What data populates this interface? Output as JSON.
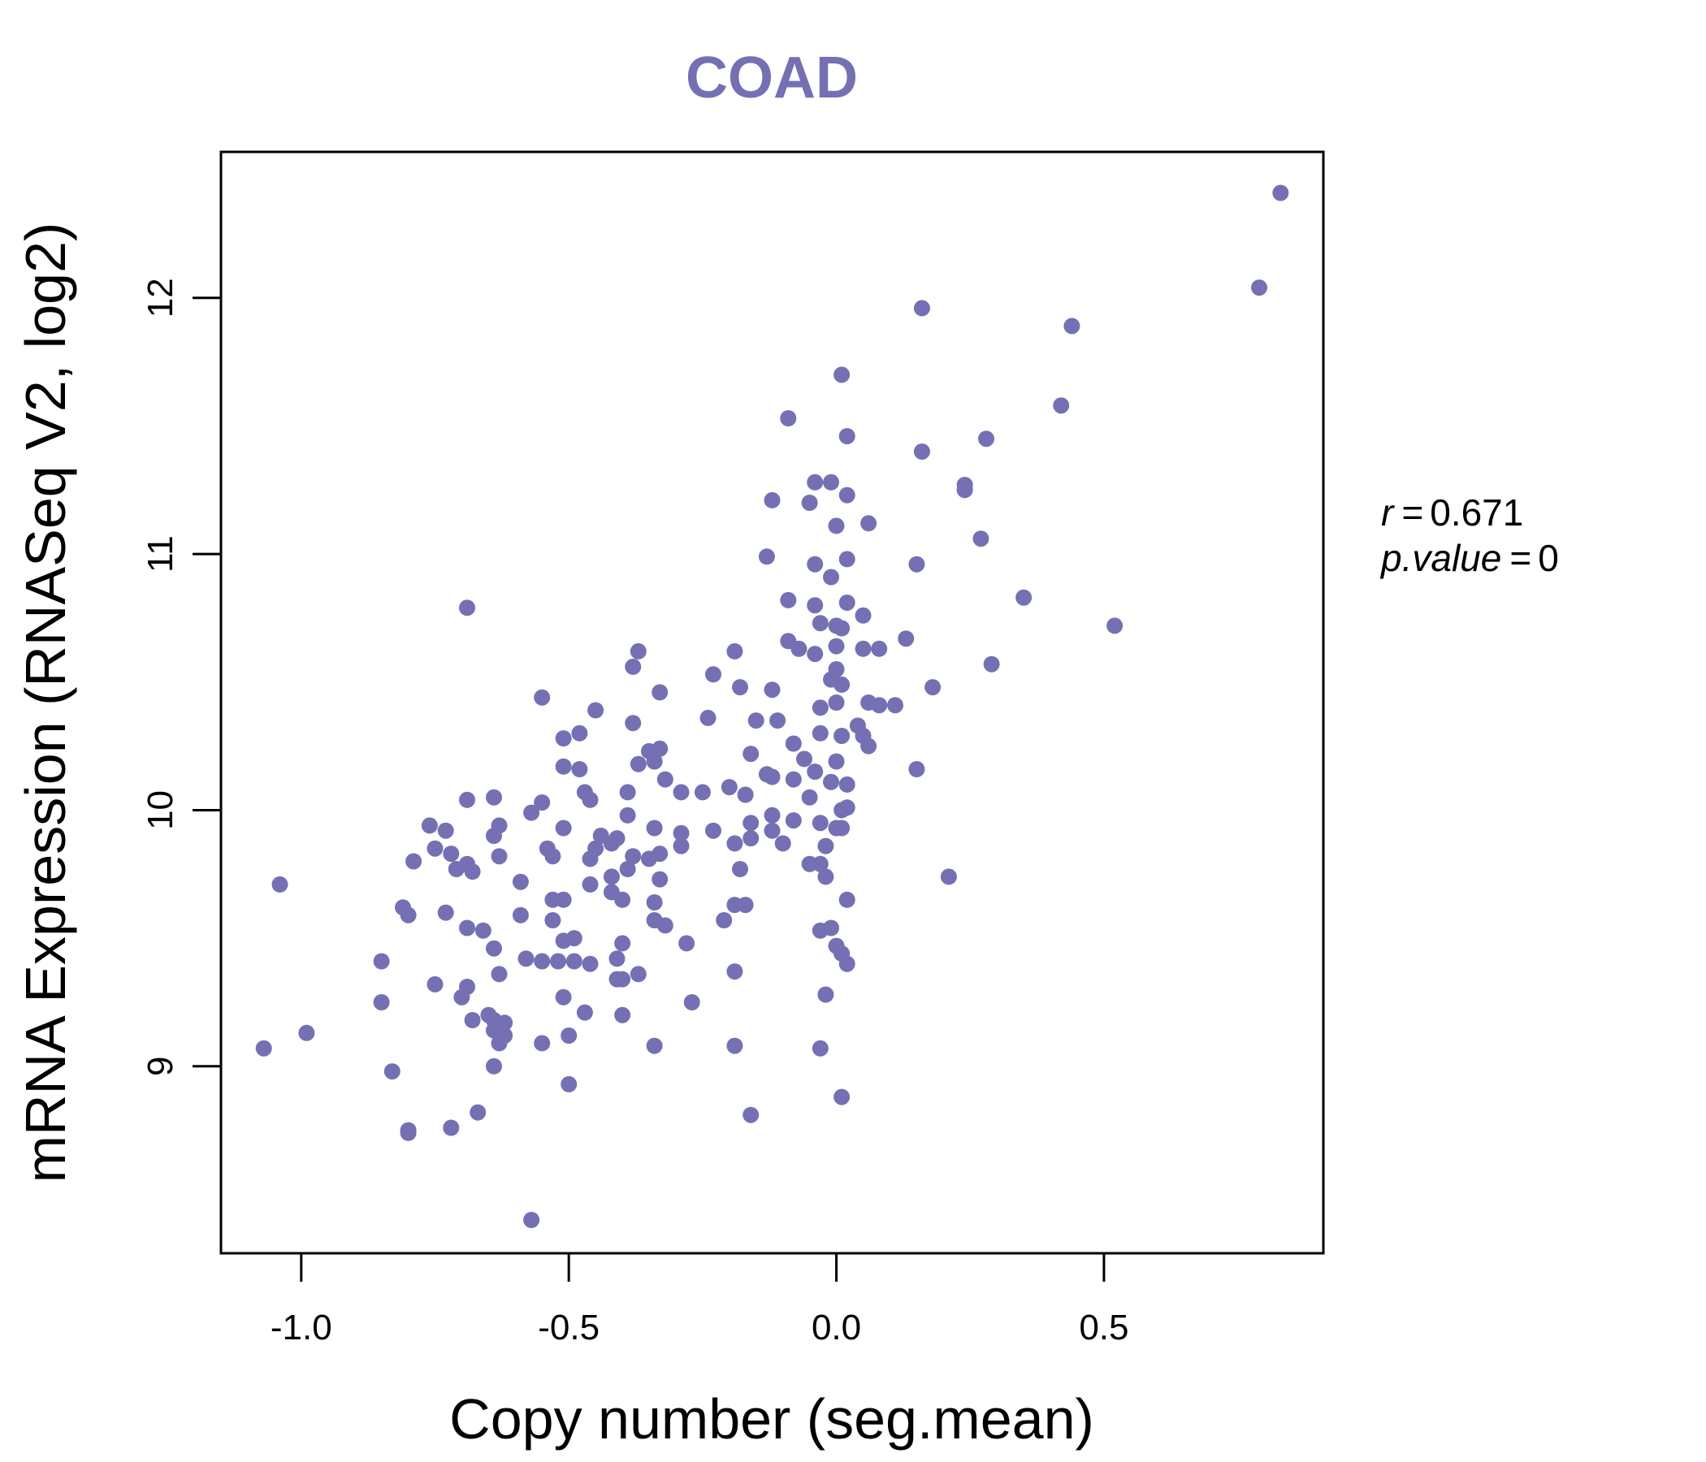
{
  "chart_data": {
    "type": "scatter",
    "title": "COAD",
    "xlabel": "Copy number (seg.mean)",
    "ylabel": "mRNA Expression (RNASeq V2, log2)",
    "xlim": [
      -1.15,
      0.91
    ],
    "ylim": [
      8.27,
      12.57
    ],
    "x_ticks": [
      -1.0,
      -0.5,
      0.0,
      0.5
    ],
    "x_tick_labels": [
      "-1.0",
      "-0.5",
      "0.0",
      "0.5"
    ],
    "y_ticks": [
      9,
      10,
      11,
      12
    ],
    "y_tick_labels": [
      "9",
      "10",
      "11",
      "12"
    ],
    "color": "#7570b3",
    "grid": false,
    "annotations": {
      "r_label": "r",
      "r_value": "0.671",
      "p_label": "p.value",
      "p_value": "0"
    },
    "points": [
      [
        0.83,
        12.41
      ],
      [
        0.79,
        12.04
      ],
      [
        0.16,
        11.96
      ],
      [
        0.44,
        11.89
      ],
      [
        0.01,
        11.7
      ],
      [
        0.42,
        11.58
      ],
      [
        -0.09,
        11.53
      ],
      [
        0.28,
        11.45
      ],
      [
        0.02,
        11.46
      ],
      [
        0.16,
        11.4
      ],
      [
        -0.04,
        11.28
      ],
      [
        -0.01,
        11.28
      ],
      [
        0.24,
        11.27
      ],
      [
        0.24,
        11.25
      ],
      [
        0.02,
        11.23
      ],
      [
        -0.12,
        11.21
      ],
      [
        -0.05,
        11.2
      ],
      [
        0.06,
        11.12
      ],
      [
        0.0,
        11.11
      ],
      [
        0.27,
        11.06
      ],
      [
        -0.13,
        10.99
      ],
      [
        0.02,
        10.98
      ],
      [
        -0.04,
        10.96
      ],
      [
        0.15,
        10.96
      ],
      [
        -0.01,
        10.91
      ],
      [
        0.35,
        10.83
      ],
      [
        -0.09,
        10.82
      ],
      [
        0.02,
        10.81
      ],
      [
        -0.04,
        10.8
      ],
      [
        0.05,
        10.76
      ],
      [
        -0.03,
        10.73
      ],
      [
        0.0,
        10.72
      ],
      [
        0.01,
        10.71
      ],
      [
        0.52,
        10.72
      ],
      [
        0.13,
        10.67
      ],
      [
        -0.09,
        10.66
      ],
      [
        0.0,
        10.64
      ],
      [
        -0.07,
        10.63
      ],
      [
        0.05,
        10.63
      ],
      [
        0.08,
        10.63
      ],
      [
        -0.19,
        10.62
      ],
      [
        -0.37,
        10.62
      ],
      [
        -0.04,
        10.61
      ],
      [
        0.29,
        10.57
      ],
      [
        -0.38,
        10.56
      ],
      [
        0.0,
        10.55
      ],
      [
        -0.23,
        10.53
      ],
      [
        -0.01,
        10.51
      ],
      [
        0.01,
        10.49
      ],
      [
        0.18,
        10.48
      ],
      [
        -0.18,
        10.48
      ],
      [
        -0.12,
        10.47
      ],
      [
        -0.33,
        10.46
      ],
      [
        -0.55,
        10.44
      ],
      [
        0.06,
        10.42
      ],
      [
        0.0,
        10.42
      ],
      [
        0.11,
        10.41
      ],
      [
        0.08,
        10.41
      ],
      [
        -0.03,
        10.4
      ],
      [
        -0.45,
        10.39
      ],
      [
        -0.24,
        10.36
      ],
      [
        -0.15,
        10.35
      ],
      [
        -0.11,
        10.35
      ],
      [
        -0.38,
        10.34
      ],
      [
        0.04,
        10.33
      ],
      [
        -0.03,
        10.3
      ],
      [
        -0.48,
        10.3
      ],
      [
        0.01,
        10.29
      ],
      [
        0.05,
        10.29
      ],
      [
        -0.51,
        10.28
      ],
      [
        -0.08,
        10.26
      ],
      [
        0.06,
        10.25
      ],
      [
        -0.33,
        10.24
      ],
      [
        -0.35,
        10.23
      ],
      [
        -0.16,
        10.22
      ],
      [
        -0.06,
        10.2
      ],
      [
        0.0,
        10.19
      ],
      [
        -0.34,
        10.19
      ],
      [
        -0.37,
        10.18
      ],
      [
        -0.51,
        10.17
      ],
      [
        -0.48,
        10.16
      ],
      [
        0.15,
        10.16
      ],
      [
        -0.04,
        10.15
      ],
      [
        -0.13,
        10.14
      ],
      [
        -0.12,
        10.13
      ],
      [
        -0.08,
        10.12
      ],
      [
        -0.01,
        10.11
      ],
      [
        0.02,
        10.1
      ],
      [
        -0.32,
        10.12
      ],
      [
        -0.2,
        10.09
      ],
      [
        -0.25,
        10.07
      ],
      [
        -0.29,
        10.07
      ],
      [
        -0.39,
        10.07
      ],
      [
        -0.47,
        10.07
      ],
      [
        -0.17,
        10.06
      ],
      [
        -0.05,
        10.05
      ],
      [
        -0.46,
        10.04
      ],
      [
        -0.55,
        10.03
      ],
      [
        -0.64,
        10.05
      ],
      [
        -0.69,
        10.04
      ],
      [
        -0.57,
        9.99
      ],
      [
        0.01,
        10.0
      ],
      [
        0.02,
        10.01
      ],
      [
        -0.39,
        9.98
      ],
      [
        -0.12,
        9.98
      ],
      [
        -0.16,
        9.95
      ],
      [
        -0.08,
        9.96
      ],
      [
        -0.03,
        9.95
      ],
      [
        -0.63,
        9.94
      ],
      [
        -0.51,
        9.93
      ],
      [
        -0.34,
        9.93
      ],
      [
        -0.23,
        9.92
      ],
      [
        -0.12,
        9.92
      ],
      [
        -0.76,
        9.94
      ],
      [
        -0.73,
        9.92
      ],
      [
        0.0,
        9.93
      ],
      [
        0.01,
        9.93
      ],
      [
        -0.44,
        9.9
      ],
      [
        -0.29,
        9.91
      ],
      [
        -0.16,
        9.89
      ],
      [
        -0.64,
        9.9
      ],
      [
        -0.41,
        9.89
      ],
      [
        -0.42,
        9.87
      ],
      [
        -0.19,
        9.87
      ],
      [
        -0.1,
        9.87
      ],
      [
        -0.02,
        9.86
      ],
      [
        -0.29,
        9.86
      ],
      [
        -0.45,
        9.85
      ],
      [
        -0.54,
        9.85
      ],
      [
        -0.75,
        9.85
      ],
      [
        -0.72,
        9.83
      ],
      [
        -0.53,
        9.82
      ],
      [
        -0.63,
        9.82
      ],
      [
        -0.38,
        9.82
      ],
      [
        -0.33,
        9.83
      ],
      [
        -0.46,
        9.81
      ],
      [
        -0.35,
        9.81
      ],
      [
        -0.79,
        9.8
      ],
      [
        -0.69,
        9.79
      ],
      [
        -0.05,
        9.79
      ],
      [
        -0.03,
        9.79
      ],
      [
        -0.71,
        9.77
      ],
      [
        -0.68,
        9.76
      ],
      [
        -0.39,
        9.77
      ],
      [
        -0.18,
        9.77
      ],
      [
        -0.42,
        9.74
      ],
      [
        -0.02,
        9.74
      ],
      [
        0.21,
        9.74
      ],
      [
        -1.04,
        9.71
      ],
      [
        -0.59,
        9.72
      ],
      [
        -0.46,
        9.71
      ],
      [
        -0.33,
        9.73
      ],
      [
        -0.42,
        9.68
      ],
      [
        -0.51,
        9.65
      ],
      [
        -0.53,
        9.65
      ],
      [
        -0.4,
        9.65
      ],
      [
        -0.34,
        9.64
      ],
      [
        -0.19,
        9.63
      ],
      [
        -0.17,
        9.63
      ],
      [
        -0.81,
        9.62
      ],
      [
        -0.8,
        9.59
      ],
      [
        -0.73,
        9.6
      ],
      [
        -0.59,
        9.59
      ],
      [
        -0.53,
        9.57
      ],
      [
        -0.34,
        9.57
      ],
      [
        -0.21,
        9.57
      ],
      [
        0.02,
        9.65
      ],
      [
        -0.32,
        9.55
      ],
      [
        -0.69,
        9.54
      ],
      [
        -0.66,
        9.53
      ],
      [
        -0.03,
        9.53
      ],
      [
        -0.01,
        9.54
      ],
      [
        -0.51,
        9.49
      ],
      [
        -0.49,
        9.5
      ],
      [
        -0.4,
        9.48
      ],
      [
        -0.28,
        9.48
      ],
      [
        -0.64,
        9.46
      ],
      [
        0.0,
        9.47
      ],
      [
        0.01,
        9.44
      ],
      [
        -0.58,
        9.42
      ],
      [
        -0.55,
        9.41
      ],
      [
        -0.52,
        9.41
      ],
      [
        -0.49,
        9.41
      ],
      [
        -0.41,
        9.42
      ],
      [
        -0.46,
        9.4
      ],
      [
        0.02,
        9.4
      ],
      [
        -0.85,
        9.41
      ],
      [
        -0.63,
        9.36
      ],
      [
        -0.37,
        9.36
      ],
      [
        -0.19,
        9.37
      ],
      [
        -0.41,
        9.34
      ],
      [
        -0.4,
        9.34
      ],
      [
        -0.75,
        9.32
      ],
      [
        -0.69,
        9.31
      ],
      [
        -0.7,
        9.27
      ],
      [
        -0.51,
        9.27
      ],
      [
        -0.02,
        9.28
      ],
      [
        -0.27,
        9.25
      ],
      [
        -0.85,
        9.25
      ],
      [
        -0.47,
        9.21
      ],
      [
        -0.4,
        9.2
      ],
      [
        -0.65,
        9.2
      ],
      [
        -0.68,
        9.18
      ],
      [
        -0.64,
        9.18
      ],
      [
        -0.62,
        9.17
      ],
      [
        -0.64,
        9.14
      ],
      [
        -0.62,
        9.12
      ],
      [
        -0.5,
        9.12
      ],
      [
        -0.63,
        9.09
      ],
      [
        -0.55,
        9.09
      ],
      [
        -0.34,
        9.08
      ],
      [
        -0.19,
        9.08
      ],
      [
        -0.03,
        9.07
      ],
      [
        -1.07,
        9.07
      ],
      [
        -0.99,
        9.13
      ],
      [
        -0.64,
        9.0
      ],
      [
        -0.83,
        8.98
      ],
      [
        -0.5,
        8.93
      ],
      [
        0.01,
        8.88
      ],
      [
        -0.67,
        8.82
      ],
      [
        -0.16,
        8.81
      ],
      [
        -0.72,
        8.76
      ],
      [
        -0.8,
        8.75
      ],
      [
        -0.8,
        8.74
      ],
      [
        -0.57,
        8.4
      ],
      [
        -0.69,
        10.79
      ]
    ]
  }
}
